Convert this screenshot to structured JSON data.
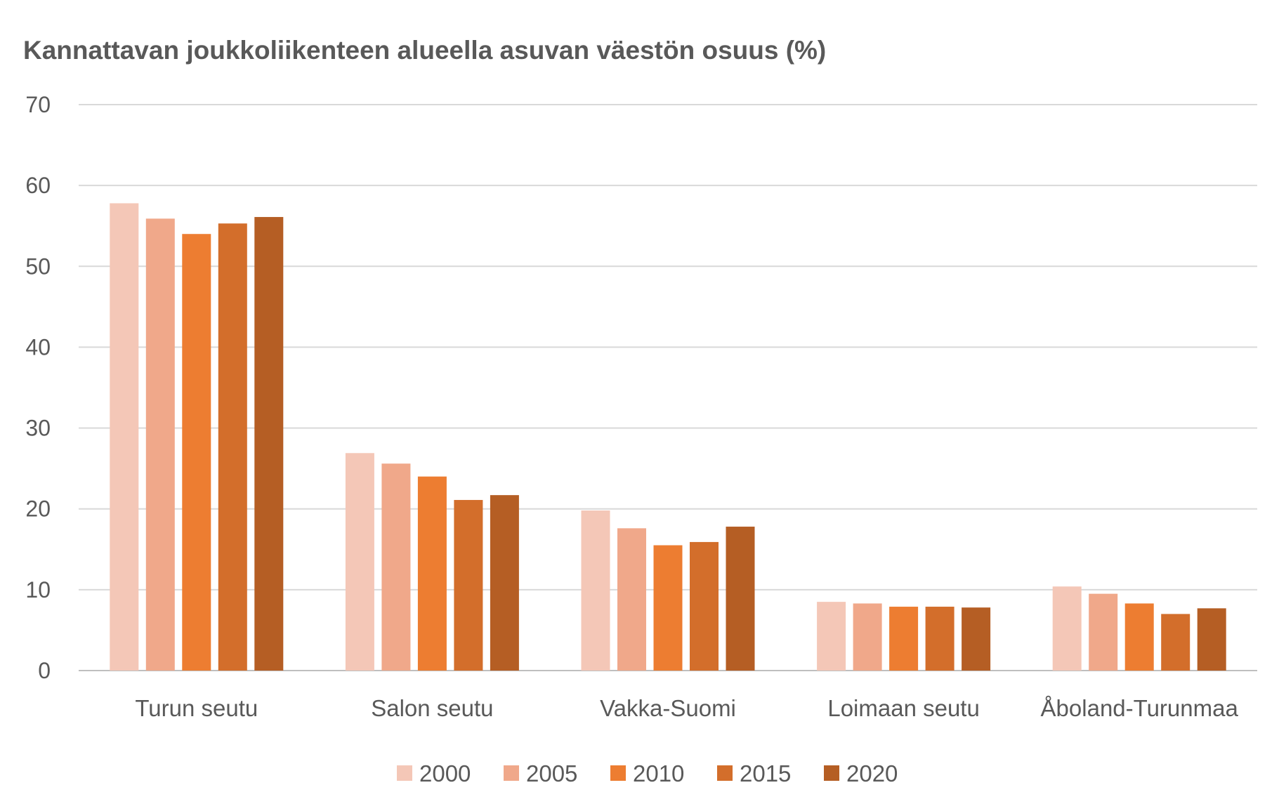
{
  "chart_data": {
    "type": "bar",
    "title": "Kannattavan joukkoliikenteen alueella asuvan väestön osuus (%)",
    "xlabel": "",
    "ylabel": "",
    "ylim": [
      0,
      70
    ],
    "yticks": [
      0,
      10,
      20,
      30,
      40,
      50,
      60,
      70
    ],
    "grid": true,
    "legend": "bottom",
    "categories": [
      "Turun seutu",
      "Salon seutu",
      "Vakka-Suomi",
      "Loimaan seutu",
      "Åboland-Turunmaa"
    ],
    "series": [
      {
        "name": "2000",
        "color": "#F4C7B7",
        "values": [
          57.8,
          26.9,
          19.8,
          8.5,
          10.4
        ]
      },
      {
        "name": "2005",
        "color": "#F0A88A",
        "values": [
          55.9,
          25.6,
          17.6,
          8.3,
          9.5
        ]
      },
      {
        "name": "2010",
        "color": "#ED7D31",
        "values": [
          54.0,
          24.0,
          15.5,
          7.9,
          8.3
        ]
      },
      {
        "name": "2015",
        "color": "#D36E2B",
        "values": [
          55.3,
          21.1,
          15.9,
          7.9,
          7.0
        ]
      },
      {
        "name": "2020",
        "color": "#B55E24",
        "values": [
          56.1,
          21.7,
          17.8,
          7.8,
          7.7
        ]
      }
    ]
  }
}
